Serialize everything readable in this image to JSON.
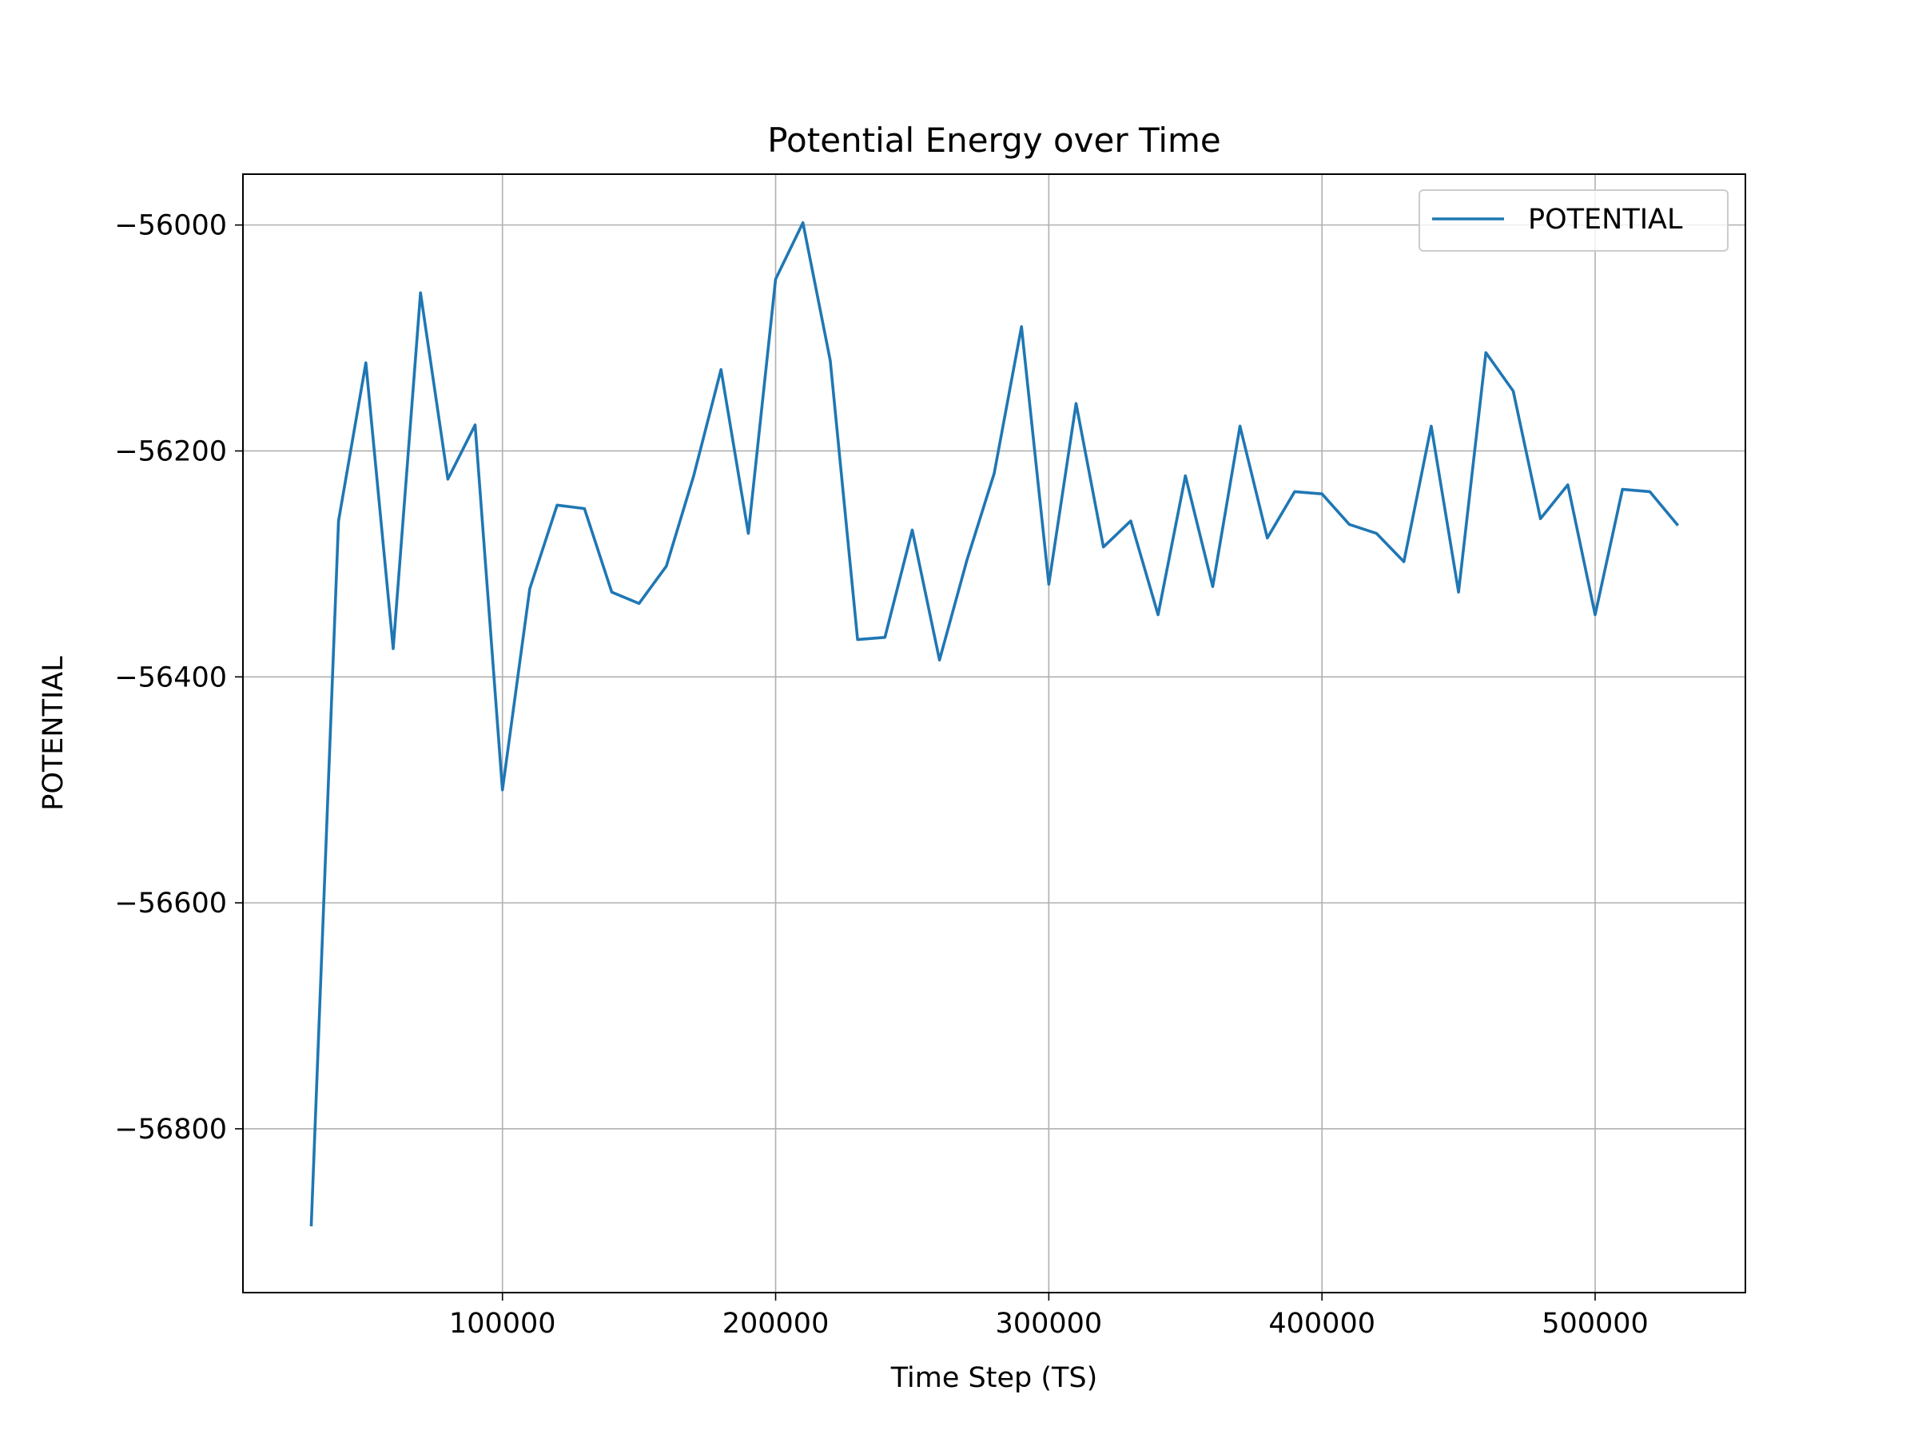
{
  "chart_data": {
    "type": "line",
    "title": "Potential Energy over Time",
    "xlabel": "Time Step (TS)",
    "ylabel": "POTENTIAL",
    "xlim": [
      5000,
      555000
    ],
    "ylim": [
      -56945,
      -55955
    ],
    "x_ticks": [
      100000,
      200000,
      300000,
      400000,
      500000
    ],
    "y_ticks": [
      -56800,
      -56600,
      -56400,
      -56200,
      -56000
    ],
    "grid": true,
    "legend_position": "top-right",
    "series": [
      {
        "name": "POTENTIAL",
        "color": "#1f77b4",
        "x": [
          30000,
          40000,
          50000,
          60000,
          70000,
          80000,
          90000,
          100000,
          110000,
          120000,
          130000,
          140000,
          150000,
          160000,
          170000,
          180000,
          190000,
          200000,
          210000,
          220000,
          230000,
          240000,
          250000,
          260000,
          270000,
          280000,
          290000,
          300000,
          310000,
          320000,
          330000,
          340000,
          350000,
          360000,
          370000,
          380000,
          390000,
          400000,
          410000,
          420000,
          430000,
          440000,
          450000,
          460000,
          470000,
          480000,
          490000,
          500000,
          510000,
          520000,
          530000
        ],
        "y": [
          -56885,
          -56262,
          -56122,
          -56375,
          -56060,
          -56225,
          -56177,
          -56500,
          -56322,
          -56248,
          -56251,
          -56325,
          -56335,
          -56302,
          -56222,
          -56128,
          -56273,
          -56048,
          -55998,
          -56120,
          -56367,
          -56365,
          -56270,
          -56385,
          -56297,
          -56220,
          -56090,
          -56318,
          -56158,
          -56285,
          -56262,
          -56345,
          -56222,
          -56320,
          -56178,
          -56277,
          -56236,
          -56238,
          -56265,
          -56273,
          -56298,
          -56178,
          -56325,
          -56113,
          -56147,
          -56260,
          -56230,
          -56345,
          -56234,
          -56236,
          -56265
        ]
      }
    ]
  }
}
